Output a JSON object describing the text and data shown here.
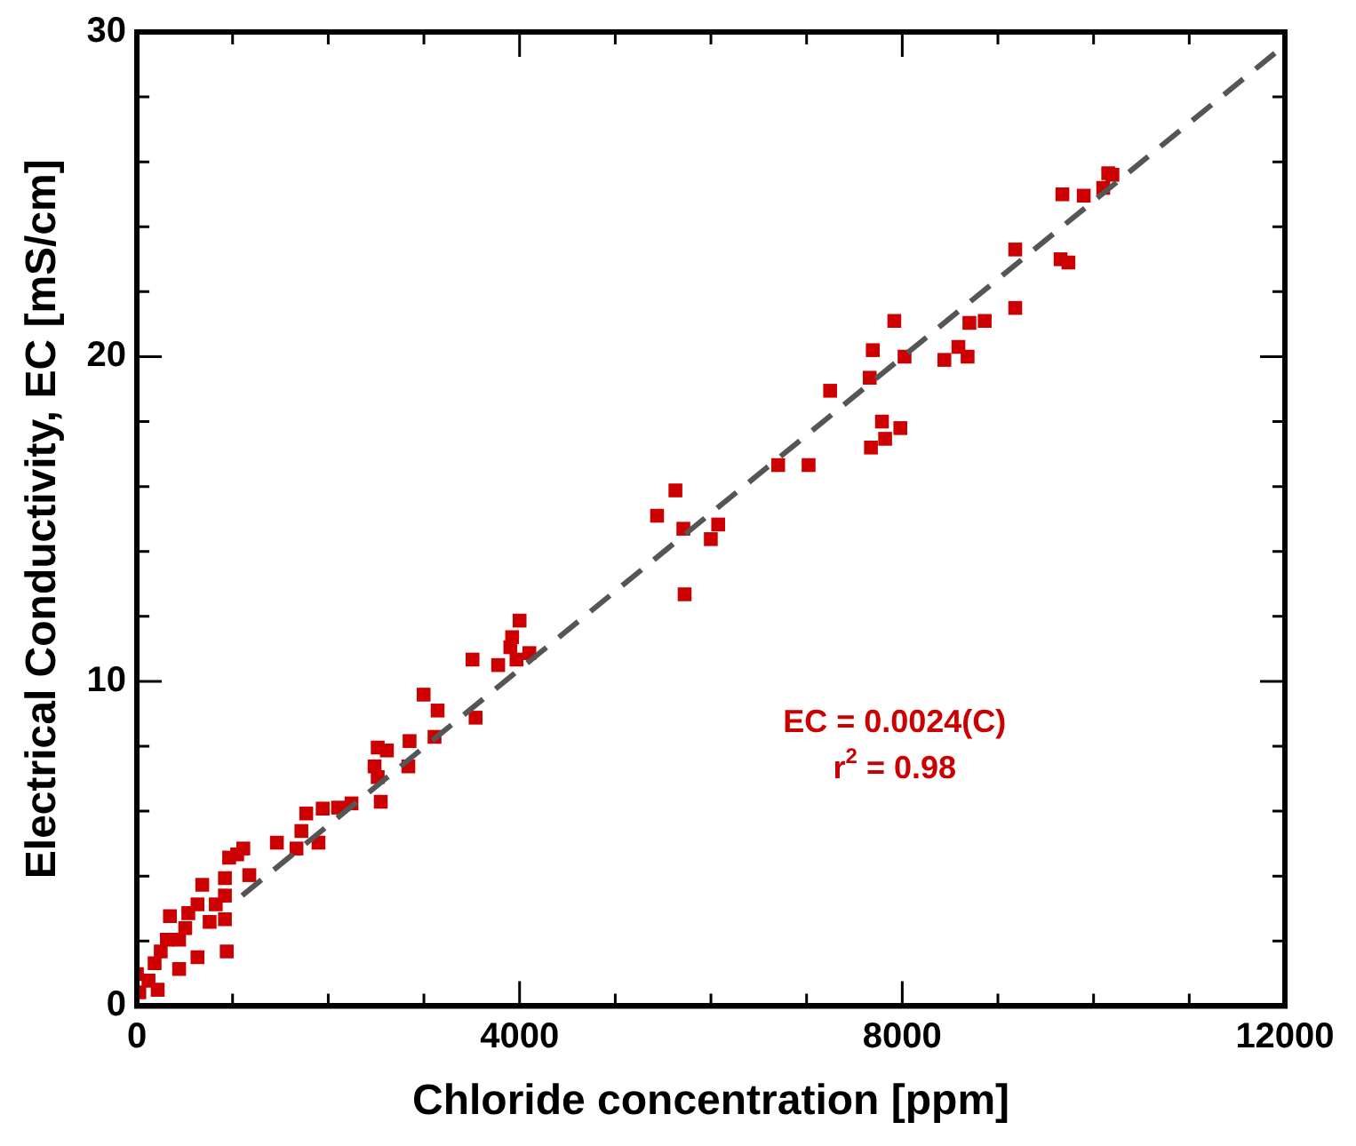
{
  "chart_data": {
    "type": "scatter",
    "xlabel": "Chloride concentration [ppm]",
    "ylabel": "Electrical Conductivity, EC [mS/cm]",
    "xlim": [
      0,
      12000
    ],
    "ylim": [
      0,
      30
    ],
    "xticks": [
      0,
      {
        "value": 1000,
        "label": null
      },
      {
        "value": 2000,
        "label": null
      },
      {
        "value": 3000,
        "label": null
      },
      4000,
      {
        "value": 5000,
        "label": null
      },
      {
        "value": 6000,
        "label": null
      },
      {
        "value": 7000,
        "label": null
      },
      8000,
      {
        "value": 9000,
        "label": null
      },
      {
        "value": 10000,
        "label": null
      },
      {
        "value": 11000,
        "label": null
      },
      12000
    ],
    "yticks": [
      0,
      {
        "value": 2,
        "label": null
      },
      {
        "value": 4,
        "label": null
      },
      {
        "value": 6,
        "label": null
      },
      {
        "value": 8,
        "label": null
      },
      10,
      {
        "value": 12,
        "label": null
      },
      {
        "value": 14,
        "label": null
      },
      {
        "value": 16,
        "label": null
      },
      {
        "value": 18,
        "label": null
      },
      20,
      {
        "value": 22,
        "label": null
      },
      {
        "value": 24,
        "label": null
      },
      {
        "value": 26,
        "label": null
      },
      {
        "value": 28,
        "label": null
      },
      30
    ],
    "grid": false,
    "legend": false,
    "marker": "square",
    "annotations": [
      "EC = 0.0024(C)",
      "r$^{2}$ = 0.98"
    ],
    "series": [
      {
        "color": "#cc0000",
        "x": [
          9674,
          9897,
          10101,
          10197,
          10153,
          9181,
          9655,
          9737,
          9181,
          7917,
          7692,
          8024,
          7660,
          7246,
          8702,
          8862,
          8587,
          8683,
          8440,
          7788,
          7980,
          7821,
          7673,
          6703,
          7021,
          5629,
          5437,
          5712,
          6076,
          5999,
          5725,
          4000,
          3922,
          3903,
          4102,
          3968,
          3776,
          3508,
          3540,
          2997,
          3143,
          2850,
          3111,
          2517,
          2613,
          2837,
          2484,
          2549,
          2517,
          2243,
          2102,
          1942,
          1770,
          1719,
          1668,
          1898,
          1463,
          1112,
          1048,
          964,
          1175,
          920,
          683,
          920,
          920,
          939,
          345,
          633,
          760,
          505,
          441,
          313,
          633,
          441,
          185,
          121,
          0,
          25,
          217,
          249,
          824,
          537
        ],
        "values": [
          25.0,
          24.96,
          25.2,
          25.6,
          25.65,
          23.3,
          23.0,
          22.9,
          21.5,
          21.1,
          20.2,
          20.0,
          19.35,
          18.95,
          21.04,
          21.1,
          20.3,
          20.0,
          19.9,
          18.0,
          17.8,
          17.47,
          17.2,
          16.66,
          16.66,
          15.88,
          15.1,
          14.7,
          14.83,
          14.38,
          12.68,
          11.87,
          11.36,
          11.05,
          10.87,
          10.67,
          10.5,
          10.67,
          8.88,
          9.59,
          9.1,
          8.16,
          8.29,
          7.96,
          7.87,
          7.38,
          7.38,
          6.29,
          7.05,
          6.24,
          6.11,
          6.08,
          5.93,
          5.39,
          4.85,
          5.03,
          5.03,
          4.85,
          4.67,
          4.57,
          4.03,
          3.94,
          3.73,
          3.4,
          2.67,
          1.68,
          2.77,
          3.13,
          2.59,
          2.4,
          2.04,
          2.04,
          1.5,
          1.14,
          1.32,
          0.78,
          0.98,
          0.42,
          0.5,
          1.68,
          3.13,
          2.86
        ]
      },
      {
        "type": "line",
        "color": "#555555",
        "line_style": "dashed",
        "marker": "none",
        "x": [
          1100,
          12000
        ],
        "values": [
          3.4,
          29.6
        ]
      }
    ]
  }
}
